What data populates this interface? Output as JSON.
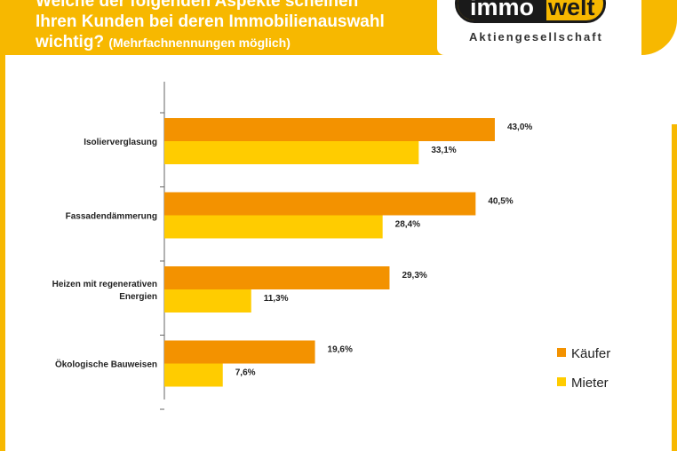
{
  "header": {
    "title_line1": "Welche der folgenden Aspekte scheinen",
    "title_line2": "Ihren Kunden bei deren Immobilienauswahl",
    "title_line3": "wichtig?",
    "title_note": "(Mehrfachnennungen möglich)"
  },
  "logo": {
    "left_text": "immo",
    "right_text": "welt",
    "subtitle": "Aktiengesellschaft"
  },
  "colors": {
    "brand": "#f7b800",
    "kaeufer": "#f39200",
    "mieter": "#ffcc00"
  },
  "chart_data": {
    "type": "bar",
    "orientation": "horizontal",
    "categories": [
      [
        "Isolierverglasung"
      ],
      [
        "Fassadendämmerung"
      ],
      [
        "Heizen mit regenerativen",
        "Energien"
      ],
      [
        "Ökologische Bauweisen"
      ]
    ],
    "series": [
      {
        "name": "Käufer",
        "values": [
          43.0,
          40.5,
          29.3,
          19.6
        ],
        "labels": [
          "43,0%",
          "40,5%",
          "29,3%",
          "19,6%"
        ]
      },
      {
        "name": "Mieter",
        "values": [
          33.1,
          28.4,
          11.3,
          7.6
        ],
        "labels": [
          "33,1%",
          "28,4%",
          "11,3%",
          "7,6%"
        ]
      }
    ],
    "xlim": [
      0,
      50
    ],
    "legend": "right"
  }
}
